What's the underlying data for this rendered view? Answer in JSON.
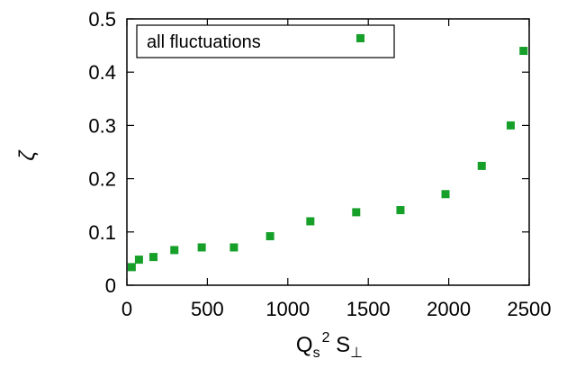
{
  "chart_data": {
    "type": "scatter",
    "ylabel": "ζ",
    "xlabel_parts": {
      "main": "Q",
      "sub1": "s",
      "sup": "2",
      "mid": " S",
      "sub2": "⊥"
    },
    "xlim": [
      0,
      2500
    ],
    "ylim": [
      0,
      0.5
    ],
    "xticks": [
      0,
      500,
      1000,
      1500,
      2000,
      2500
    ],
    "yticks": [
      0,
      0.1,
      0.2,
      0.3,
      0.4,
      0.5
    ],
    "xtick_labels": [
      "0",
      "500",
      "1000",
      "1500",
      "2000",
      "2500"
    ],
    "ytick_labels": [
      "0",
      "0.1",
      "0.2",
      "0.3",
      "0.4",
      "0.5"
    ],
    "grid": false,
    "legend_position": "top-left",
    "series": [
      {
        "name": "all fluctuations",
        "color": "#16a029",
        "marker": "square",
        "x": [
          30,
          75,
          165,
          295,
          465,
          665,
          890,
          1140,
          1425,
          1700,
          1980,
          2205,
          2385,
          2465
        ],
        "y": [
          0.034,
          0.048,
          0.053,
          0.066,
          0.071,
          0.071,
          0.092,
          0.12,
          0.137,
          0.141,
          0.171,
          0.224,
          0.3,
          0.44
        ]
      }
    ]
  }
}
